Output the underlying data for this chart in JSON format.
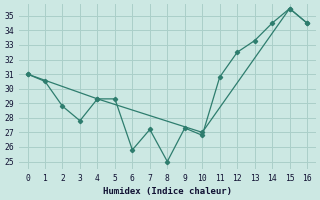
{
  "line1_x": [
    0,
    1,
    2,
    3,
    4,
    5,
    6,
    7,
    8,
    9,
    10,
    11,
    12,
    13,
    14,
    15,
    16
  ],
  "line1_y": [
    31.0,
    30.5,
    28.8,
    27.8,
    29.3,
    29.3,
    25.8,
    27.2,
    25.0,
    27.3,
    26.8,
    30.8,
    32.5,
    33.3,
    34.5,
    35.5,
    34.5
  ],
  "line2_x": [
    0,
    4,
    10,
    15,
    16
  ],
  "line2_y": [
    31.0,
    29.3,
    27.0,
    35.5,
    34.5
  ],
  "line_color": "#2e7d6e",
  "bg_color": "#cce8e3",
  "grid_color": "#aacfc9",
  "xlabel": "Humidex (Indice chaleur)",
  "xlim": [
    -0.5,
    16.5
  ],
  "ylim": [
    24.5,
    35.8
  ],
  "xticks": [
    0,
    1,
    2,
    3,
    4,
    5,
    6,
    7,
    8,
    9,
    10,
    11,
    12,
    13,
    14,
    15,
    16
  ],
  "yticks": [
    25,
    26,
    27,
    28,
    29,
    30,
    31,
    32,
    33,
    34,
    35
  ]
}
